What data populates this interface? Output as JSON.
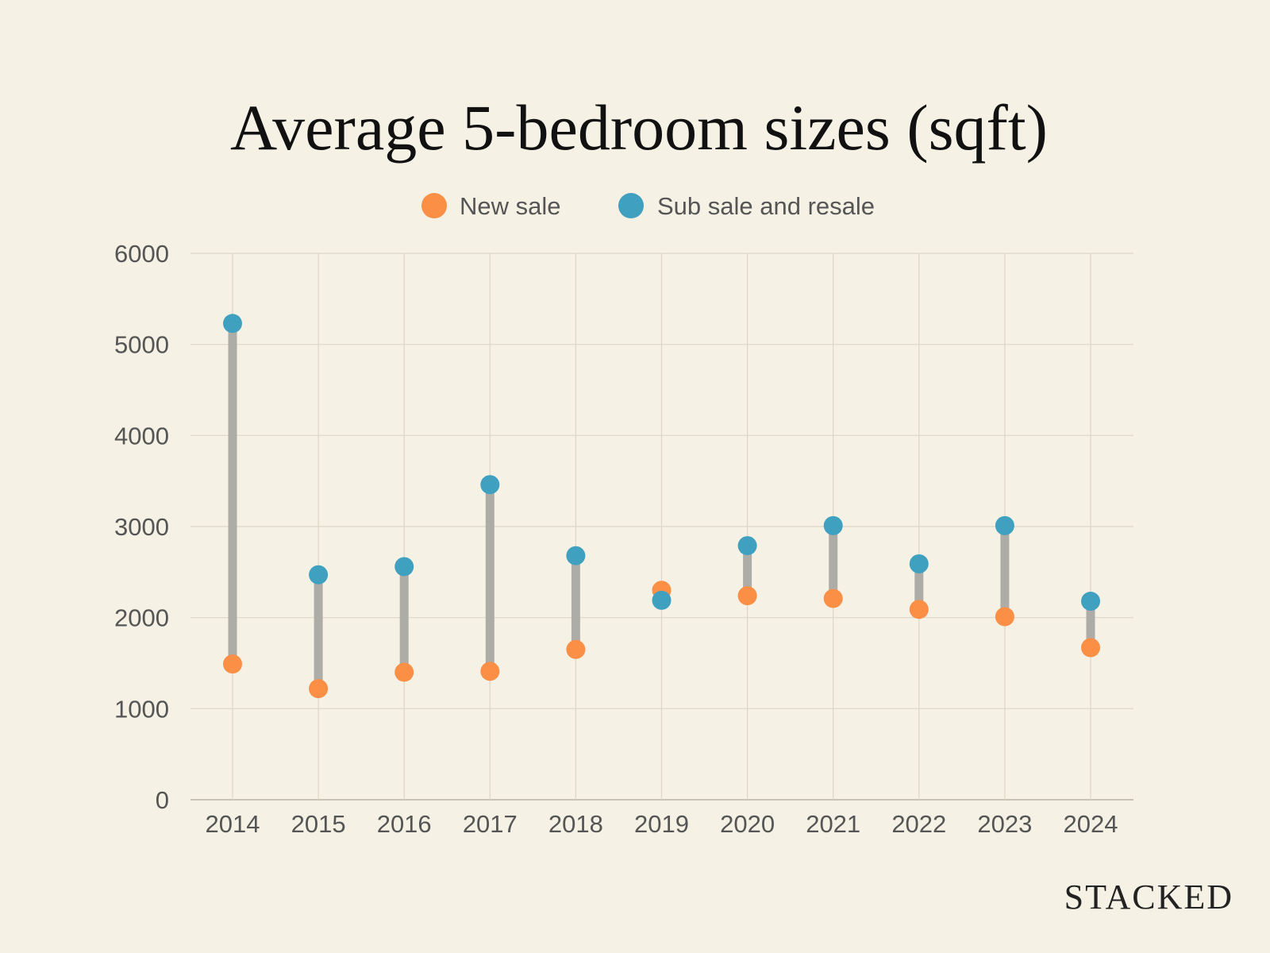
{
  "chart_data": {
    "type": "dumbbell",
    "title": "Average 5-bedroom sizes (sqft)",
    "xlabel": "",
    "ylabel": "",
    "categories": [
      "2014",
      "2015",
      "2016",
      "2017",
      "2018",
      "2019",
      "2020",
      "2021",
      "2022",
      "2023",
      "2024"
    ],
    "series": [
      {
        "name": "New sale",
        "color": "#fa8f45",
        "values": [
          1490,
          1220,
          1400,
          1410,
          1650,
          2300,
          2240,
          2210,
          2090,
          2010,
          1670
        ]
      },
      {
        "name": "Sub sale and resale",
        "color": "#3fa0c0",
        "values": [
          5230,
          2470,
          2560,
          3460,
          2680,
          2190,
          2790,
          3010,
          2590,
          3010,
          2180
        ]
      }
    ],
    "ylim": [
      0,
      6000
    ],
    "yticks": [
      0,
      1000,
      2000,
      3000,
      4000,
      5000,
      6000
    ],
    "grid": true,
    "legend_position": "top-center",
    "connector_color": "#aeaca6"
  },
  "branding": {
    "logo_text": "STACKED"
  }
}
